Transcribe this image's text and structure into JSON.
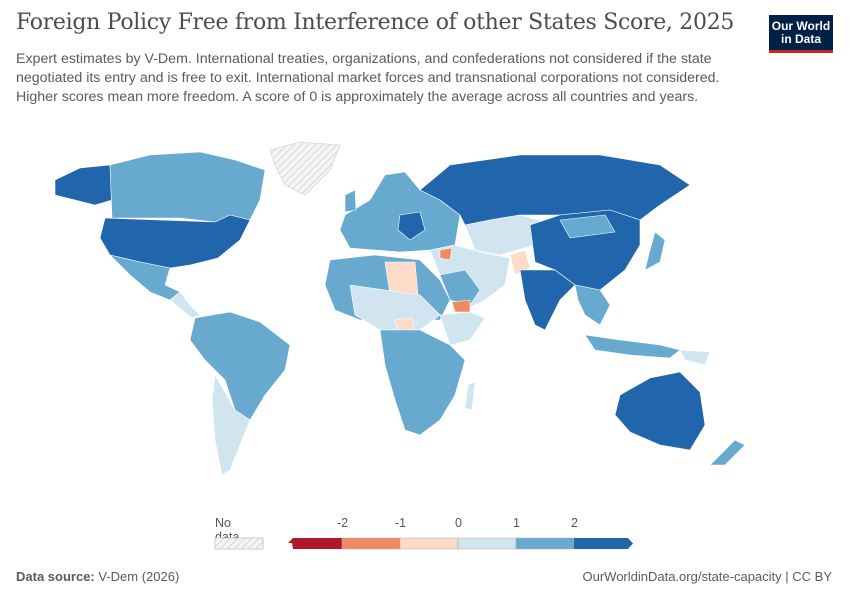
{
  "header": {
    "title": "Foreign Policy Free from Interference of other States Score, 2025",
    "subtitle": "Expert estimates by V-Dem. International treaties, organizations, and confederations not considered if the state negotiated its entry and is free to exit. International market forces and transnational corporations not considered. Higher scores mean more freedom. A score of 0 is approximately the average across all countries and years.",
    "logo_text": "Our World in Data"
  },
  "map": {
    "type": "choropleth",
    "year": "2025",
    "colors": {
      "below_-2": "#b2182b",
      "-2_to_-1": "#ef8a62",
      "-1_to_0": "#fddbc7",
      "0_to_1": "#d1e5f0",
      "1_to_2": "#67a9cf",
      "above_2": "#2166ac",
      "no_data": "hatched"
    }
  },
  "legend": {
    "no_data_label": "No data",
    "ticks": [
      "-2",
      "-1",
      "0",
      "1",
      "2"
    ],
    "bins": [
      "#b2182b",
      "#ef8a62",
      "#fddbc7",
      "#d1e5f0",
      "#67a9cf",
      "#2166ac"
    ]
  },
  "footer": {
    "source_label": "Data source:",
    "source_value": "V-Dem (2026)",
    "link": "OurWorldinData.org/state-capacity | CC BY"
  }
}
